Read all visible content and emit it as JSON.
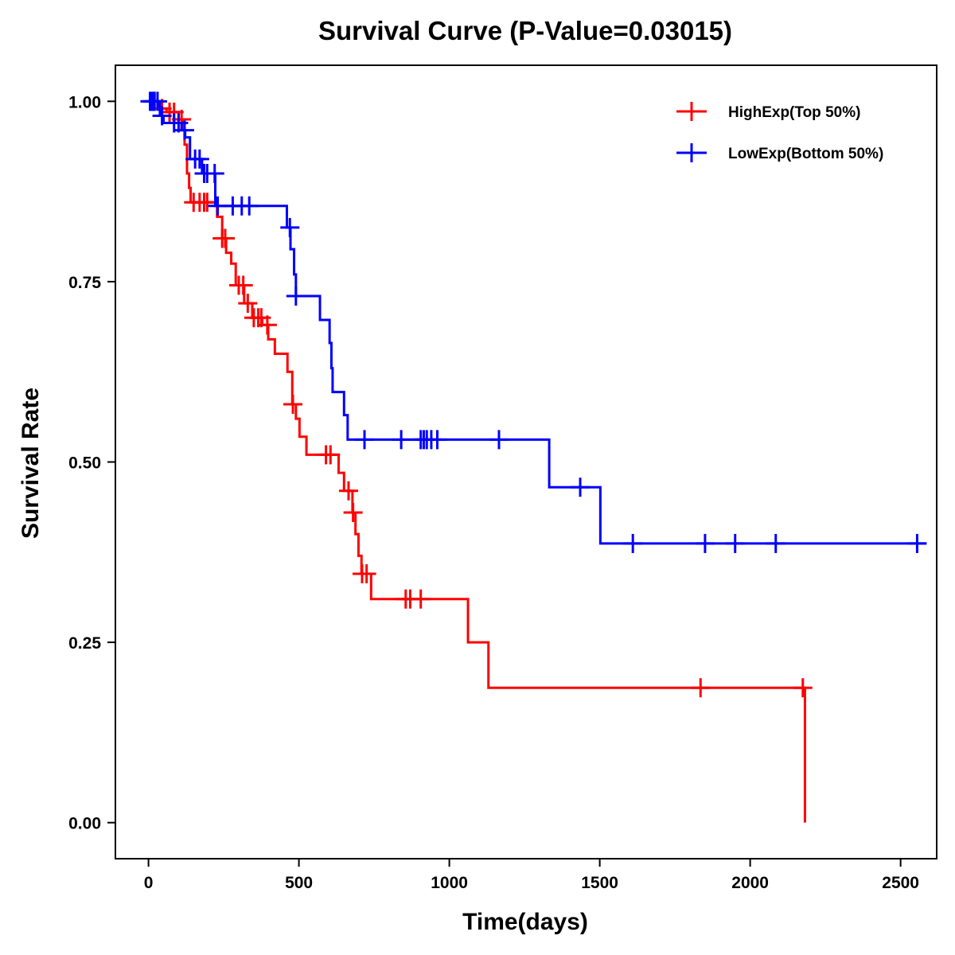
{
  "chart_data": {
    "type": "line",
    "subtype": "kaplan-meier-step",
    "title": "Survival Curve (P-Value=0.03015)",
    "xlabel": "Time(days)",
    "ylabel": "Survival Rate",
    "xlim": [
      -110,
      2620
    ],
    "ylim": [
      -0.05,
      1.05
    ],
    "xticks": [
      0,
      500,
      1000,
      1500,
      2000,
      2500
    ],
    "xtick_labels": [
      "0",
      "500",
      "1000",
      "1500",
      "2000",
      "2500"
    ],
    "yticks": [
      0,
      0.25,
      0.5,
      0.75,
      1.0
    ],
    "ytick_labels": [
      "0.00",
      "0.25",
      "0.50",
      "0.75",
      "1.00"
    ],
    "grid": false,
    "legend_position": "top-right",
    "series": [
      {
        "name": "HighExp(Top 50%)",
        "color": "#FF0000",
        "steps": [
          [
            0,
            1.0
          ],
          [
            30,
            0.99
          ],
          [
            60,
            0.985
          ],
          [
            100,
            0.975
          ],
          [
            112,
            0.96
          ],
          [
            120,
            0.94
          ],
          [
            128,
            0.9
          ],
          [
            135,
            0.88
          ],
          [
            140,
            0.86
          ],
          [
            228,
            0.84
          ],
          [
            245,
            0.81
          ],
          [
            258,
            0.79
          ],
          [
            275,
            0.775
          ],
          [
            290,
            0.745
          ],
          [
            318,
            0.72
          ],
          [
            345,
            0.7
          ],
          [
            378,
            0.69
          ],
          [
            398,
            0.67
          ],
          [
            420,
            0.65
          ],
          [
            462,
            0.625
          ],
          [
            478,
            0.58
          ],
          [
            490,
            0.56
          ],
          [
            502,
            0.535
          ],
          [
            525,
            0.51
          ],
          [
            632,
            0.485
          ],
          [
            650,
            0.46
          ],
          [
            678,
            0.43
          ],
          [
            688,
            0.4
          ],
          [
            698,
            0.37
          ],
          [
            708,
            0.345
          ],
          [
            740,
            0.31
          ],
          [
            1062,
            0.25
          ],
          [
            1130,
            0.187
          ],
          [
            2182,
            0.0
          ]
        ],
        "end_time": 2182,
        "censor_times": [
          20,
          45,
          70,
          85,
          110,
          150,
          170,
          185,
          195,
          245,
          255,
          300,
          315,
          330,
          350,
          365,
          375,
          395,
          480,
          590,
          605,
          665,
          680,
          710,
          725,
          855,
          870,
          905,
          1835,
          2175
        ]
      },
      {
        "name": "LowExp(Bottom 50%)",
        "color": "#0000FF",
        "steps": [
          [
            0,
            1.0
          ],
          [
            38,
            0.98
          ],
          [
            50,
            0.97
          ],
          [
            110,
            0.96
          ],
          [
            122,
            0.95
          ],
          [
            138,
            0.92
          ],
          [
            178,
            0.9
          ],
          [
            222,
            0.855
          ],
          [
            460,
            0.825
          ],
          [
            472,
            0.795
          ],
          [
            484,
            0.76
          ],
          [
            490,
            0.73
          ],
          [
            570,
            0.697
          ],
          [
            602,
            0.665
          ],
          [
            608,
            0.63
          ],
          [
            612,
            0.597
          ],
          [
            650,
            0.565
          ],
          [
            662,
            0.531
          ],
          [
            1332,
            0.465
          ],
          [
            1502,
            0.387
          ]
        ],
        "end_time": 2585,
        "censor_times": [
          5,
          10,
          15,
          20,
          30,
          45,
          85,
          100,
          120,
          155,
          170,
          185,
          195,
          220,
          230,
          280,
          310,
          335,
          470,
          490,
          718,
          840,
          905,
          915,
          925,
          940,
          960,
          1165,
          1435,
          1610,
          1850,
          1950,
          2085,
          2555
        ]
      }
    ]
  }
}
